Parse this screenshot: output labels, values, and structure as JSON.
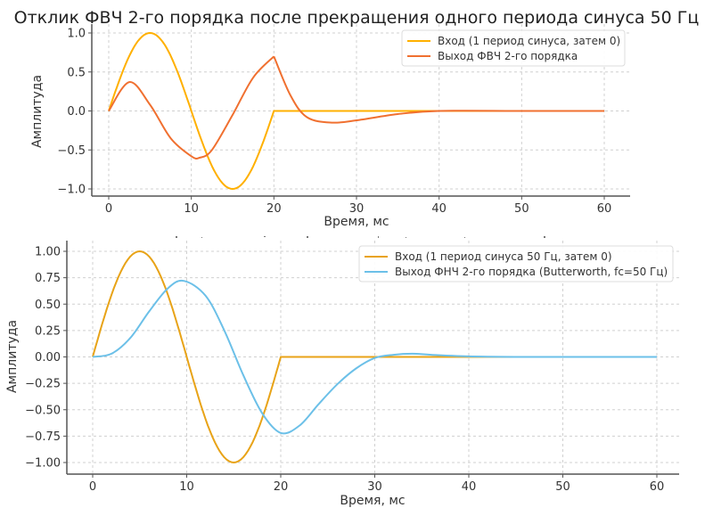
{
  "chart_data": [
    {
      "type": "line",
      "title": "Отклик ФВЧ 2-го порядка после прекращения одного периода синуса 50 Гц",
      "xlabel": "Время, мс",
      "ylabel": "Амплитуда",
      "xlim": [
        -3,
        63
      ],
      "ylim": [
        -1.1,
        1.1
      ],
      "xticks": [
        "0",
        "10",
        "20",
        "30",
        "40",
        "50",
        "60"
      ],
      "yticks": [
        "1.0",
        "0.5",
        "0.0",
        "−0.5",
        "−1.0"
      ],
      "grid": true,
      "legend_position": "upper right",
      "series": [
        {
          "name": "Вход (1 период синуса, затем 0)",
          "color": "#FFB000",
          "x": [
            0,
            2.5,
            5,
            7.5,
            10,
            12.5,
            15,
            17.5,
            20,
            30,
            40,
            50,
            60
          ],
          "values": [
            0,
            0.71,
            1.0,
            0.71,
            0,
            -0.71,
            -1.0,
            -0.71,
            0,
            0,
            0,
            0,
            0
          ]
        },
        {
          "name": "Выход ФВЧ 2-го порядка",
          "color": "#F07030",
          "x": [
            0,
            2.5,
            5,
            7.5,
            10,
            11,
            12.5,
            15,
            17.5,
            20,
            22,
            24,
            27,
            30,
            35,
            40,
            50,
            60
          ],
          "values": [
            0,
            0.37,
            0.08,
            -0.35,
            -0.58,
            -0.6,
            -0.5,
            -0.05,
            0.43,
            0.7,
            0.2,
            -0.08,
            -0.15,
            -0.12,
            -0.04,
            0.0,
            0.0,
            0.0
          ]
        }
      ]
    },
    {
      "type": "line",
      "title": "",
      "xlabel": "Время, мс",
      "ylabel": "Амплитуда",
      "xlim": [
        -3,
        63
      ],
      "ylim": [
        -1.1,
        1.1
      ],
      "xticks": [
        "0",
        "10",
        "20",
        "30",
        "40",
        "50",
        "60"
      ],
      "yticks": [
        "1.00",
        "0.75",
        "0.50",
        "0.25",
        "0.00",
        "−0.25",
        "−0.50",
        "−0.75",
        "−1.00"
      ],
      "grid": true,
      "legend_position": "upper right",
      "series": [
        {
          "name": "Вход (1 период синуса 50 Гц, затем 0)",
          "color": "#E8A317",
          "x": [
            0,
            2.5,
            5,
            7.5,
            10,
            12.5,
            15,
            17.5,
            20,
            30,
            40,
            50,
            60
          ],
          "values": [
            0,
            0.71,
            1.0,
            0.71,
            0,
            -0.71,
            -1.0,
            -0.71,
            0,
            0,
            0,
            0,
            0
          ]
        },
        {
          "name": "Выход ФНЧ 2-го порядка (Butterworth, fc=50 Гц)",
          "color": "#6CC0E8",
          "x": [
            0,
            2,
            4,
            6,
            8,
            9.7,
            12,
            14,
            16,
            18,
            20,
            22,
            24,
            26,
            28,
            30,
            32,
            34,
            36,
            40,
            45,
            50,
            60
          ],
          "values": [
            0,
            0.03,
            0.18,
            0.43,
            0.65,
            0.72,
            0.58,
            0.25,
            -0.17,
            -0.53,
            -0.72,
            -0.65,
            -0.45,
            -0.26,
            -0.11,
            -0.01,
            0.02,
            0.03,
            0.02,
            0.005,
            0.0,
            0.0,
            0.0
          ]
        }
      ]
    }
  ]
}
